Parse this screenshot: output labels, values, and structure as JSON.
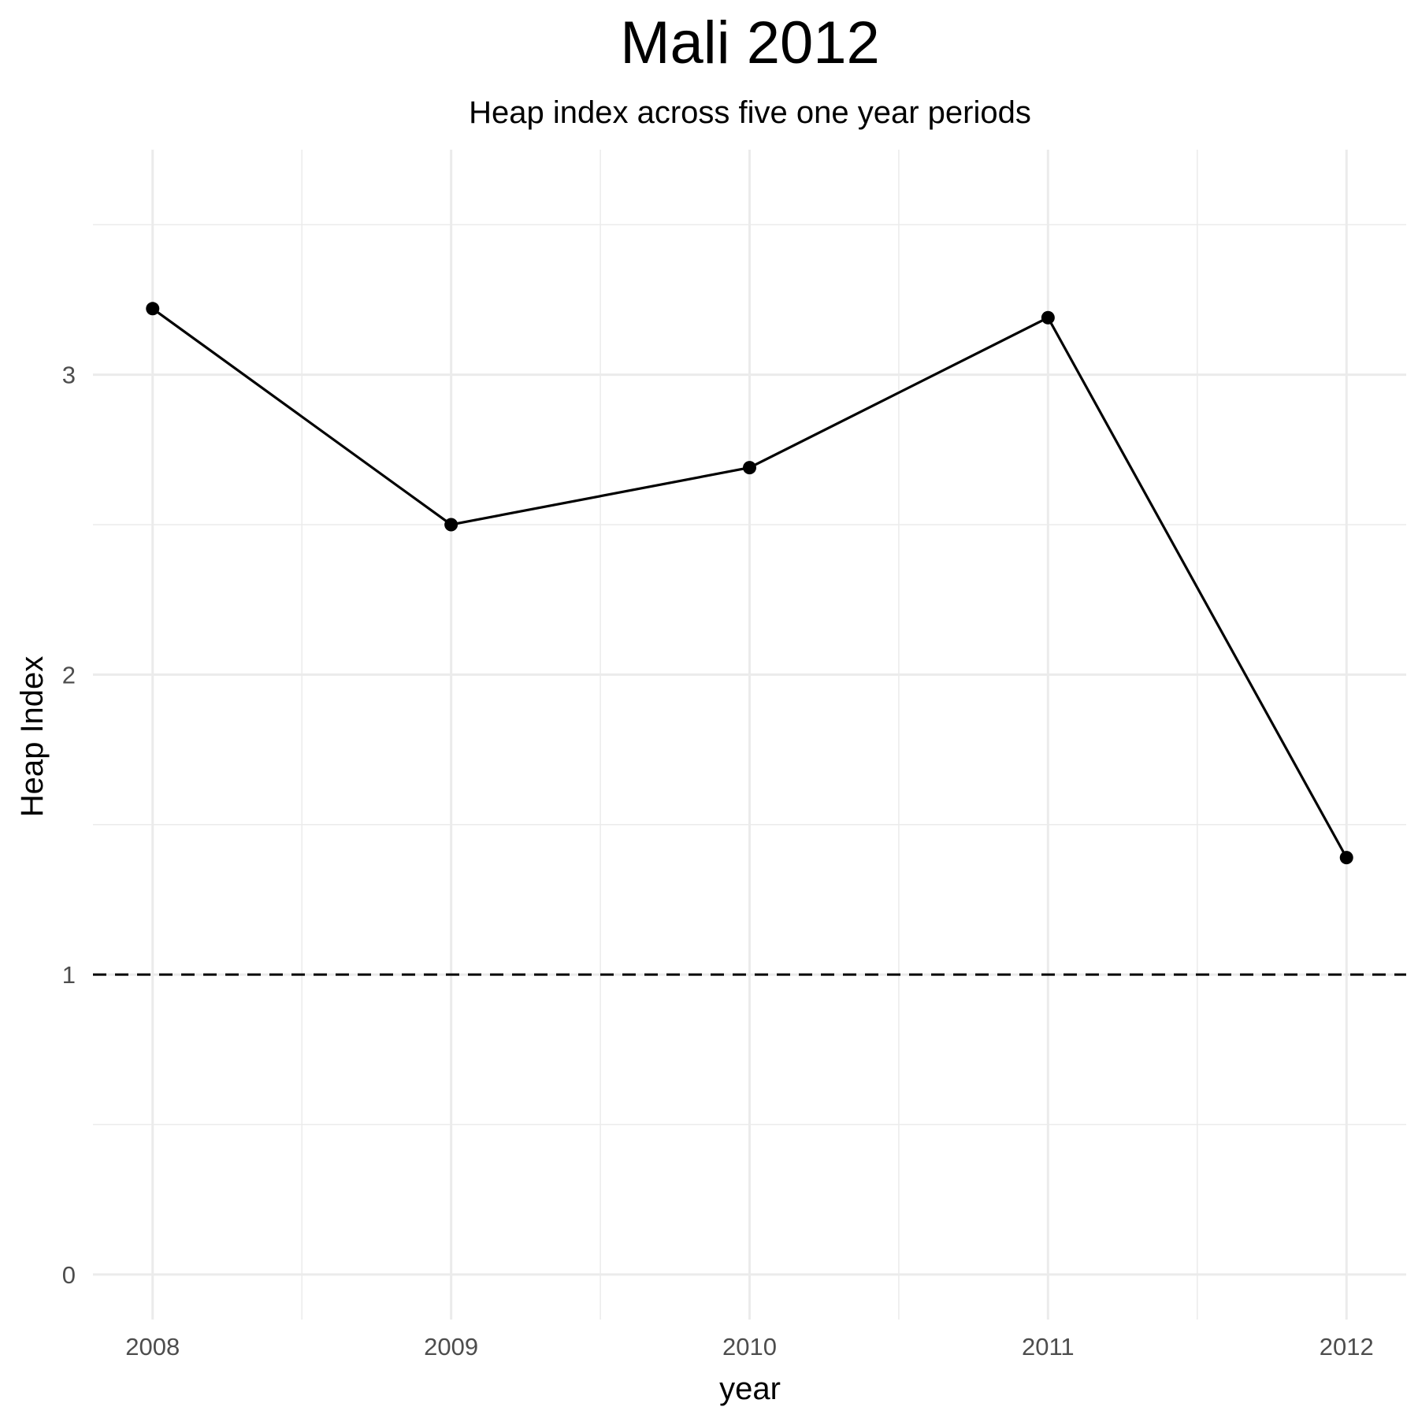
{
  "chart_data": {
    "type": "line",
    "title": "Mali 2012",
    "subtitle": "Heap index across five one year periods",
    "xlabel": "year",
    "ylabel": "Heap Index",
    "x": [
      2008,
      2009,
      2010,
      2011,
      2012
    ],
    "x_tick_labels": [
      "2008",
      "2009",
      "2010",
      "2011",
      "2012"
    ],
    "y_ticks": [
      0,
      1,
      2,
      3
    ],
    "y_tick_labels": [
      "0",
      "1",
      "2",
      "3"
    ],
    "series": [
      {
        "values": [
          3.22,
          2.5,
          2.69,
          3.19,
          1.39
        ],
        "color": "#000000",
        "markers": true
      }
    ],
    "reference_line": {
      "y": 1,
      "style": "dashed",
      "color": "#000000"
    },
    "xlim": [
      2007.8,
      2012.2
    ],
    "ylim": [
      -0.15,
      3.75
    ],
    "grid": true,
    "legend": "none",
    "grid_color": "#ebebeb"
  }
}
